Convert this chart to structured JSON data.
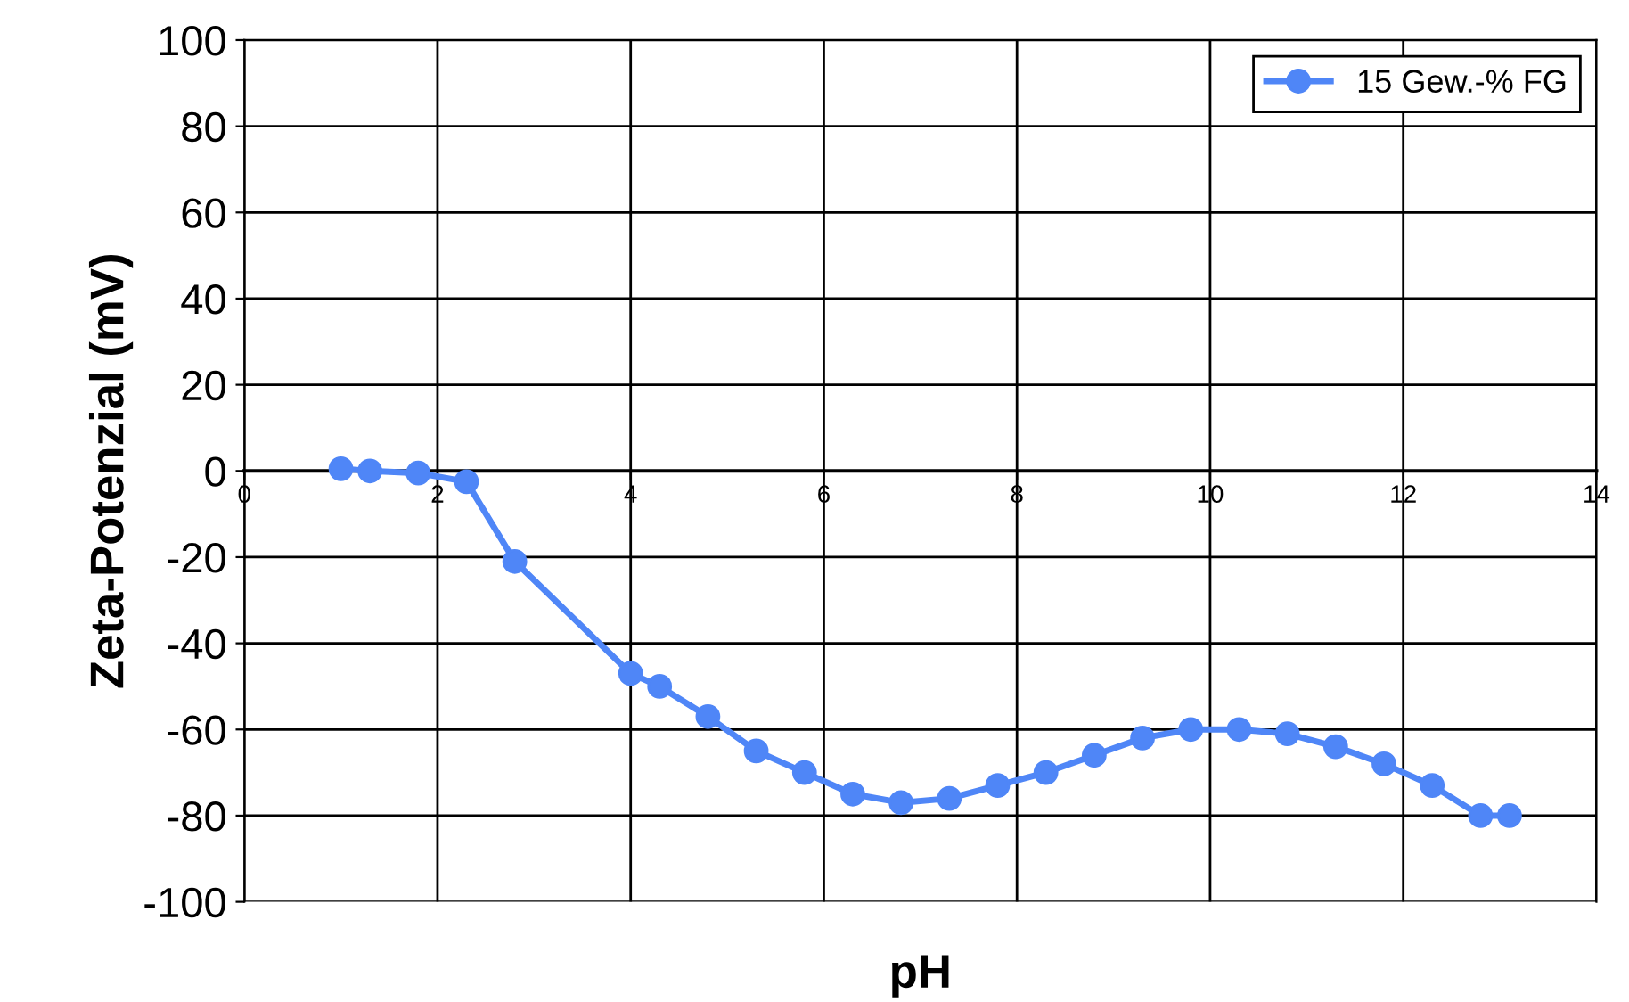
{
  "chart_data": {
    "type": "line",
    "xlabel": "pH",
    "ylabel": "Zeta-Potenzial (mV)",
    "xlim": [
      0,
      14
    ],
    "xticks": [
      0,
      2,
      4,
      6,
      8,
      10,
      12,
      14
    ],
    "ylim": [
      -100,
      100
    ],
    "yticks": [
      -100,
      -80,
      -60,
      -40,
      -20,
      0,
      20,
      40,
      60,
      80,
      100
    ],
    "grid": true,
    "legend": "top right",
    "marker": "circle",
    "line_style": "solid",
    "series": [
      {
        "name": "15 Gew.-% FG",
        "color": "#4f86f7",
        "x": [
          1.0,
          1.3,
          1.8,
          2.3,
          2.8,
          4.0,
          4.3,
          4.8,
          5.3,
          5.8,
          6.3,
          6.8,
          7.3,
          7.8,
          8.3,
          8.8,
          9.3,
          9.8,
          10.3,
          10.8,
          11.3,
          11.8,
          12.3,
          12.8,
          13.1
        ],
        "values": [
          0.5,
          0,
          -0.5,
          -2.5,
          -21,
          -47,
          -50,
          -57,
          -65,
          -70,
          -75,
          -77,
          -76,
          -73,
          -70,
          -66,
          -62,
          -60,
          -60,
          -61,
          -64,
          -68,
          -73,
          -80,
          -80
        ]
      }
    ]
  }
}
